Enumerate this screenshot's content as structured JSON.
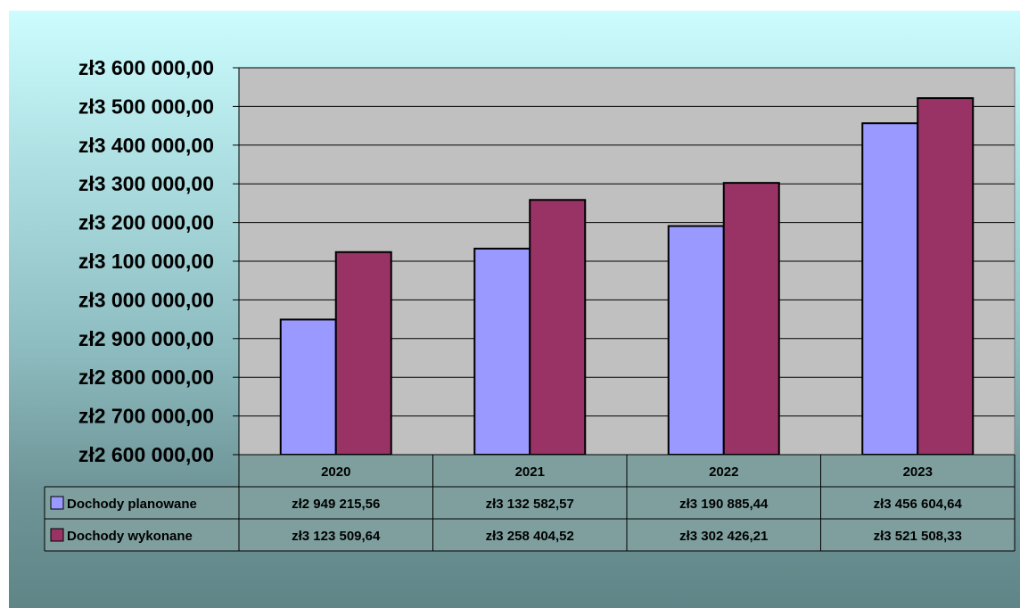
{
  "chart_data": {
    "type": "bar",
    "categories": [
      "2020",
      "2021",
      "2022",
      "2023"
    ],
    "ylim": [
      2600000,
      3600000
    ],
    "yticks": [
      2600000,
      2700000,
      2800000,
      2900000,
      3000000,
      3100000,
      3200000,
      3300000,
      3400000,
      3500000,
      3600000
    ],
    "ytick_labels": [
      "zł2 600 000,00",
      "zł2 700 000,00",
      "zł2 800 000,00",
      "zł2 900 000,00",
      "zł3 000 000,00",
      "zł3 100 000,00",
      "zł3 200 000,00",
      "zł3 300 000,00",
      "zł3 400 000,00",
      "zł3 500 000,00",
      "zł3 600 000,00"
    ],
    "grid": true,
    "legend": "data-table",
    "series": [
      {
        "name": "Dochody planowane",
        "color": "#9999ff",
        "values": [
          2949215.56,
          3132582.57,
          3190885.44,
          3456604.64
        ],
        "labels": [
          "zł2 949 215,56",
          "zł3 132 582,57",
          "zł3 190 885,44",
          "zł3 456 604,64"
        ]
      },
      {
        "name": "Dochody wykonane",
        "color": "#993366",
        "values": [
          3123509.64,
          3258404.52,
          3302426.21,
          3521508.33
        ],
        "labels": [
          "zł3 123 509,64",
          "zł3 258 404,52",
          "zł3 302 426,21",
          "zł3 521 508,33"
        ]
      }
    ],
    "plot_background": "#c0c0c0",
    "table_background": "#7f9f9f"
  }
}
